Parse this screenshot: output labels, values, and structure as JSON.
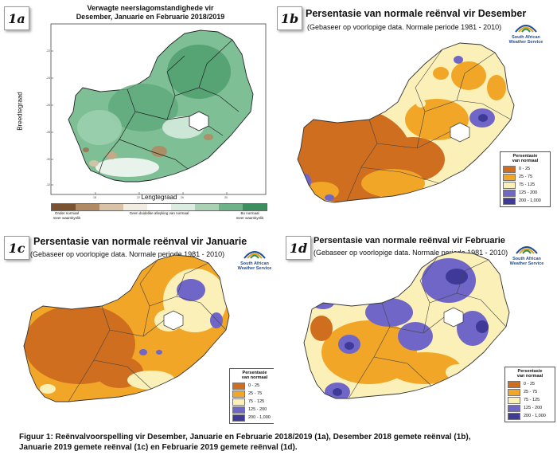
{
  "panels": {
    "p1a": {
      "label": "1a",
      "title_line1": "Verwagte neerslagomstandighede vir",
      "title_line2": "Desember, Januarie en Februarie 2018/2019",
      "ylabel": "Breedtegraad",
      "xlabel": "Lengtegraad",
      "colorbar": {
        "left_label_1": "Onder normaal",
        "left_label_2": "meer waarskynlik",
        "mid_label": "Geen duidelike afwyking van normaal",
        "right_label_1": "Bo normaal",
        "right_label_2": "meer waarskynlik",
        "colors": [
          "#7a5230",
          "#b08a62",
          "#d9c2a6",
          "#f2ece2",
          "#ffffff",
          "#dbece0",
          "#a9d2b5",
          "#6db289",
          "#3b8f5e"
        ]
      }
    },
    "p1b": {
      "label": "1b",
      "title": "Persentasie van normale reënval vir Desember",
      "subtitle": "(Gebaseer op voorlopige data. Normale periode 1981 - 2010)"
    },
    "p1c": {
      "label": "1c",
      "title": "Persentasie van normale reënval vir Januarie",
      "subtitle": "(Gebaseer op voorlopige data. Normale periode 1981 - 2010)"
    },
    "p1d": {
      "label": "1d",
      "title": "Persentasie van normale reënval vir Februarie",
      "subtitle": "(Gebaseer op voorlopige data. Normale periode 1981 - 2010)"
    }
  },
  "logo": {
    "line1": "South African",
    "line2": "Weather Service"
  },
  "legend": {
    "title_line1": "Persentasie",
    "title_line2": "van normaal",
    "items": [
      {
        "label": "0 - 25",
        "color": "#cf6e1f"
      },
      {
        "label": "25 - 75",
        "color": "#f2a627"
      },
      {
        "label": "75 - 125",
        "color": "#fbf1b8"
      },
      {
        "label": "125 - 200",
        "color": "#6f66c7"
      },
      {
        "label": "200 - 1,000",
        "color": "#3f3a98"
      }
    ]
  },
  "caption_line1": "Figuur 1: Reënvalvoorspelling vir Desember, Januarie en Februarie 2018/2019 (1a), Desember 2018 gemete reënval (1b),",
  "caption_line2": "Januarie 2019 gemete reënval (1c) en Februarie 2019 gemete reënval (1d)."
}
